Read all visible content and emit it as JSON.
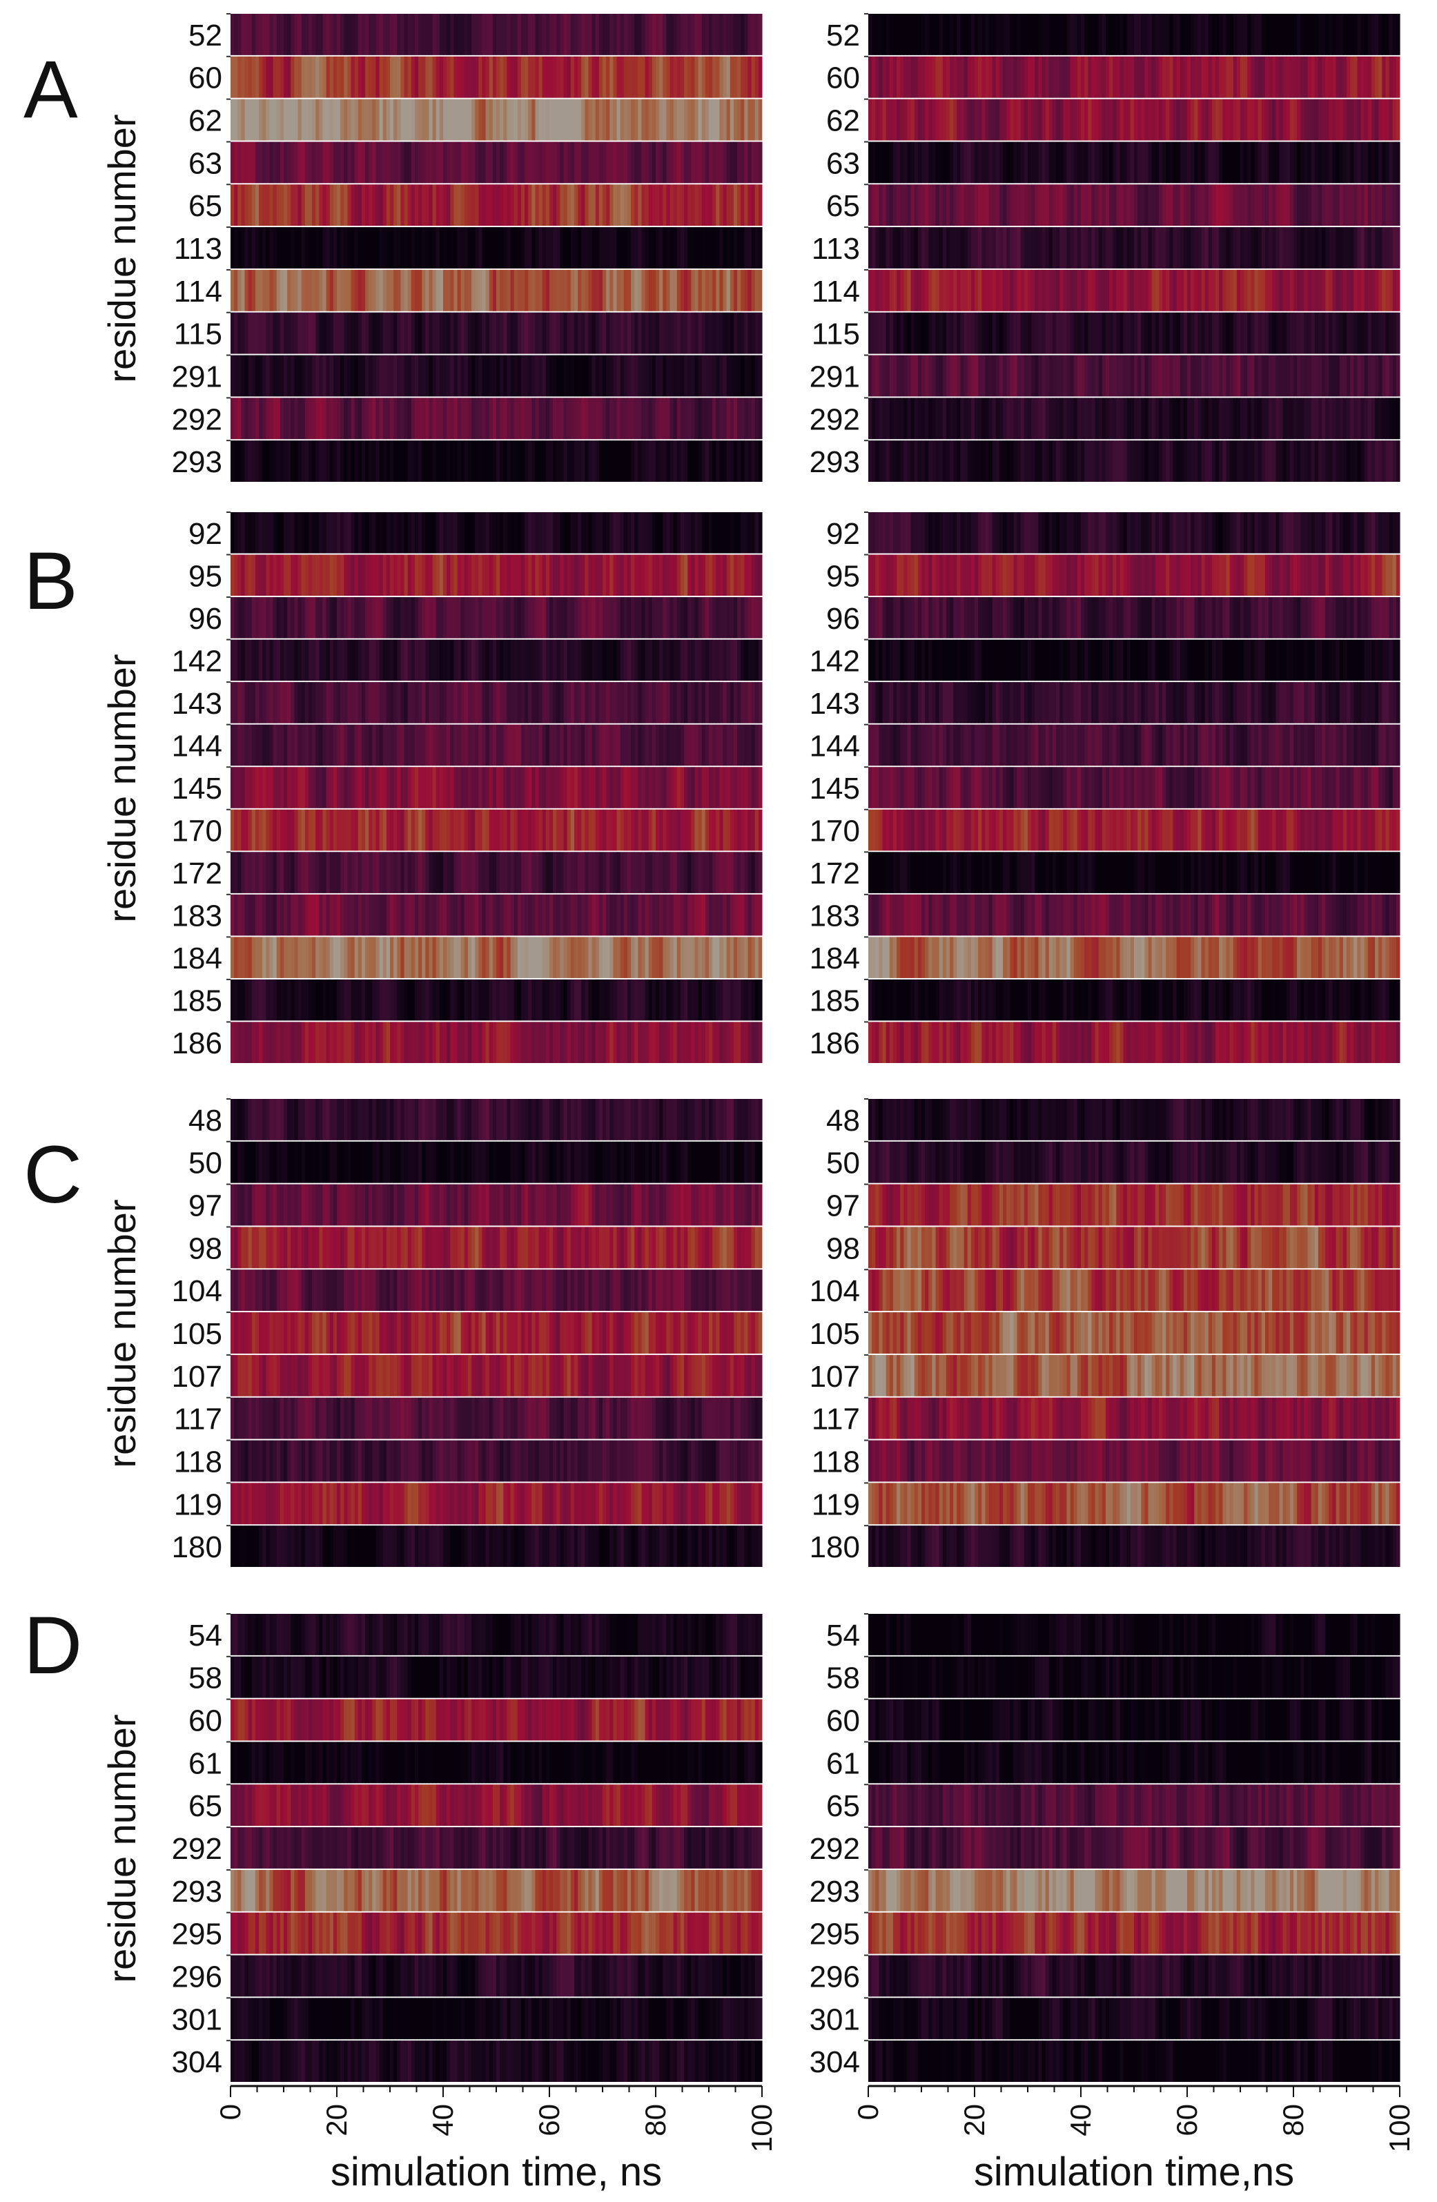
{
  "figure": {
    "kind": "residue contact heatmaps",
    "colormap": "rocket (black-magenta-orange-cream)"
  },
  "chart_data": [
    {
      "type": "heatmap",
      "panel": "A",
      "ylabel": "residue number",
      "rows": [
        "52",
        "60",
        "62",
        "63",
        "65",
        "113",
        "114",
        "115",
        "291",
        "292",
        "293"
      ],
      "left": [
        0.33,
        0.74,
        0.95,
        0.42,
        0.72,
        0.04,
        0.83,
        0.22,
        0.12,
        0.4,
        0.06
      ],
      "right": [
        0.02,
        0.58,
        0.6,
        0.12,
        0.44,
        0.22,
        0.62,
        0.16,
        0.34,
        0.17,
        0.16
      ],
      "xlim": [
        0,
        100
      ]
    },
    {
      "type": "heatmap",
      "panel": "B",
      "ylabel": "residue number",
      "rows": [
        "92",
        "95",
        "96",
        "142",
        "143",
        "144",
        "145",
        "170",
        "172",
        "183",
        "184",
        "185",
        "186"
      ],
      "left": [
        0.1,
        0.64,
        0.35,
        0.2,
        0.34,
        0.36,
        0.54,
        0.7,
        0.3,
        0.44,
        0.88,
        0.14,
        0.58
      ],
      "right": [
        0.18,
        0.64,
        0.3,
        0.04,
        0.24,
        0.34,
        0.4,
        0.66,
        0.02,
        0.42,
        0.88,
        0.1,
        0.62
      ],
      "xlim": [
        0,
        100
      ]
    },
    {
      "type": "heatmap",
      "panel": "C",
      "ylabel": "residue number",
      "rows": [
        "48",
        "50",
        "97",
        "98",
        "104",
        "105",
        "107",
        "117",
        "118",
        "119",
        "180"
      ],
      "left": [
        0.24,
        0.03,
        0.48,
        0.65,
        0.42,
        0.67,
        0.64,
        0.36,
        0.3,
        0.66,
        0.1
      ],
      "right": [
        0.12,
        0.16,
        0.7,
        0.76,
        0.75,
        0.8,
        0.86,
        0.58,
        0.44,
        0.82,
        0.16
      ],
      "xlim": [
        0,
        100
      ]
    },
    {
      "type": "heatmap",
      "panel": "D",
      "ylabel": "residue number",
      "rows": [
        "54",
        "58",
        "60",
        "61",
        "65",
        "292",
        "293",
        "295",
        "296",
        "301",
        "304"
      ],
      "left": [
        0.14,
        0.1,
        0.66,
        0.02,
        0.58,
        0.3,
        0.84,
        0.7,
        0.16,
        0.05,
        0.12
      ],
      "right": [
        0.02,
        0.02,
        0.06,
        0.03,
        0.4,
        0.36,
        0.94,
        0.7,
        0.18,
        0.1,
        0.03
      ],
      "xlim": [
        0,
        100
      ]
    }
  ],
  "x_axis": {
    "ticks": [
      "0",
      "20",
      "40",
      "60",
      "80",
      "100"
    ],
    "tick_values": [
      0,
      20,
      40,
      60,
      80,
      100
    ],
    "xlabel_left": "simulation time, ns",
    "xlabel_right": "simulation time,ns"
  }
}
